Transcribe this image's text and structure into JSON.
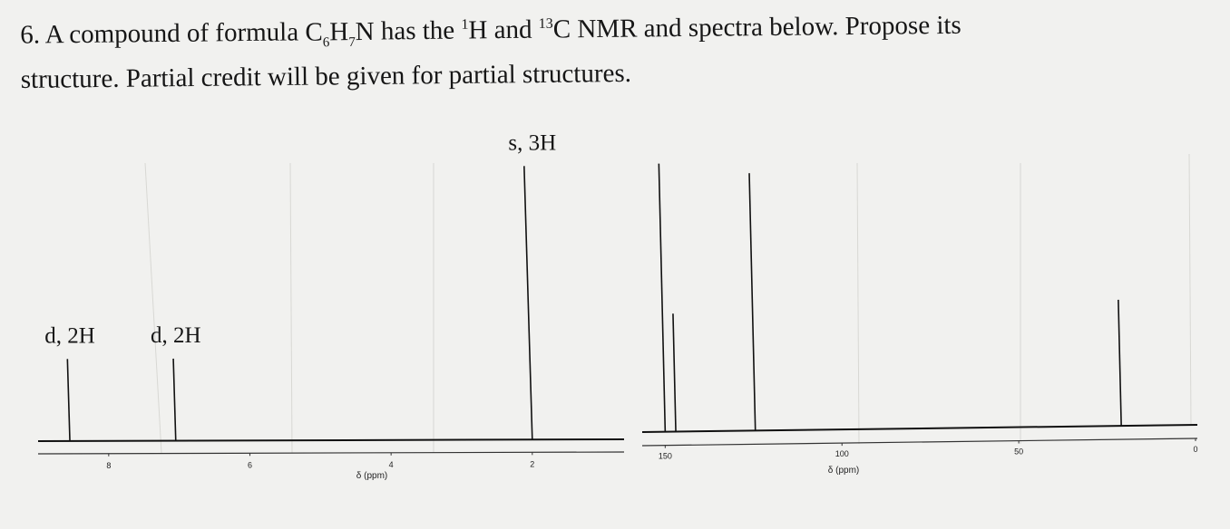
{
  "question": {
    "number": "6.",
    "text_before_formula": "A compound of formula ",
    "formula": {
      "c": "C",
      "c_count": "6",
      "h": "H",
      "h_count": "7",
      "n": "N"
    },
    "text_after_formula": " has the ",
    "h_sup": "1",
    "h_label": "H and ",
    "c_sup": "13",
    "c_label": "C NMR and spectra below. Propose its",
    "line2": "structure. Partial credit will be given for partial structures."
  },
  "chart_data": [
    {
      "type": "line",
      "spectrum": "1H NMR",
      "xlabel": "δ (ppm)",
      "xlim": [
        9.0,
        0.7
      ],
      "xticks": [
        8,
        6,
        4,
        2
      ],
      "peaks": [
        {
          "shift": 8.55,
          "height": 0.3,
          "label": "d, 2H"
        },
        {
          "shift": 7.05,
          "height": 0.3,
          "label": "d, 2H"
        },
        {
          "shift": 2.0,
          "height": 1.0,
          "label": "s, 3H"
        }
      ]
    },
    {
      "type": "line",
      "spectrum": "13C NMR",
      "xlabel": "δ (ppm)",
      "xlim": [
        156.5,
        0
      ],
      "xticks": [
        150,
        100,
        50,
        0
      ],
      "peaks": [
        {
          "shift": 150.0,
          "height": 1.0,
          "label": ""
        },
        {
          "shift": 147.0,
          "height": 0.44,
          "label": ""
        },
        {
          "shift": 124.5,
          "height": 0.96,
          "label": ""
        },
        {
          "shift": 21.0,
          "height": 0.47,
          "label": ""
        }
      ]
    }
  ]
}
